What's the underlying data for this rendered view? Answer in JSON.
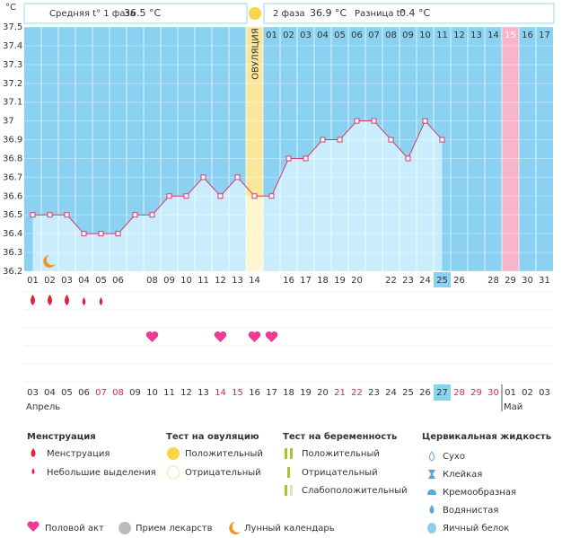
{
  "chart_data": {
    "type": "line",
    "y_unit": "°C",
    "header": {
      "phase1_label": "Средняя t° 1 фаза",
      "phase1_value": "36.5 °C",
      "phase2_label": "2 фаза",
      "phase2_value": "36.9 °C",
      "diff_label": "Разница t°",
      "diff_value": "0.4 °C"
    },
    "categories": [
      "01",
      "02",
      "03",
      "04",
      "05",
      "06",
      null,
      "08",
      "09",
      "10",
      "11",
      "12",
      "13",
      "14",
      null,
      "16",
      "17",
      "18",
      "19",
      "20",
      null,
      "22",
      "23",
      "24",
      "25",
      "26",
      null,
      "28",
      "29",
      "30",
      "31"
    ],
    "cycle_days": [
      null,
      null,
      null,
      null,
      null,
      null,
      null,
      null,
      null,
      null,
      null,
      null,
      null,
      null,
      "01",
      "02",
      "03",
      "04",
      "05",
      "06",
      "07",
      "08",
      "09",
      "10",
      "11",
      "12",
      "13",
      "14",
      "15",
      "16",
      "17"
    ],
    "series": [
      {
        "name": "t°",
        "color": "#d63a6c",
        "values": [
          36.5,
          36.5,
          36.5,
          36.4,
          36.4,
          36.4,
          36.5,
          36.5,
          36.6,
          36.6,
          36.7,
          36.6,
          36.7,
          36.6,
          36.6,
          36.8,
          36.8,
          36.9,
          36.9,
          37.0,
          37.0,
          36.9,
          36.8,
          37.0,
          36.9,
          null,
          null,
          null,
          null,
          null,
          null
        ]
      }
    ],
    "ylim": [
      36.2,
      37.5
    ],
    "yticks": [
      36.2,
      36.3,
      36.4,
      36.5,
      36.6,
      36.7,
      36.8,
      36.9,
      37,
      37.1,
      37.2,
      37.3,
      37.4,
      37.5
    ],
    "ovulation_day": 14,
    "ovulation_label": "ОВУЛЯЦИЯ",
    "cycle_highlight_day": 29,
    "selected_day": 25,
    "menstruation_days": [
      1,
      2,
      3
    ],
    "light_bleeding_days": [
      4,
      5
    ],
    "intercourse_days": [
      8,
      12,
      14,
      15
    ],
    "moon_days": [
      2
    ],
    "dates": [
      {
        "label": "03"
      },
      {
        "label": "04"
      },
      {
        "label": "05"
      },
      {
        "label": "06"
      },
      {
        "label": "07",
        "weekend": true
      },
      {
        "label": "08",
        "weekend": true
      },
      {
        "label": "09"
      },
      {
        "label": "10"
      },
      {
        "label": "11"
      },
      {
        "label": "12"
      },
      {
        "label": "13"
      },
      {
        "label": "14",
        "weekend": true
      },
      {
        "label": "15",
        "weekend": true
      },
      {
        "label": "16"
      },
      {
        "label": "17"
      },
      {
        "label": "18"
      },
      {
        "label": "19"
      },
      {
        "label": "20"
      },
      {
        "label": "21",
        "weekend": true
      },
      {
        "label": "22",
        "weekend": true
      },
      {
        "label": "23"
      },
      {
        "label": "24"
      },
      {
        "label": "25"
      },
      {
        "label": "26"
      },
      {
        "label": "27"
      },
      {
        "label": "28",
        "weekend": true
      },
      {
        "label": "29",
        "weekend": true
      },
      {
        "label": "30",
        "weekend": true
      },
      {
        "label": "01"
      },
      {
        "label": "02"
      },
      {
        "label": "03"
      }
    ],
    "weekend_color": "#e0245e",
    "months": [
      "Апрель",
      "Май"
    ],
    "legend": {
      "menstruation": {
        "title": "Менструация",
        "items": [
          "Менструация",
          "Небольшие выделения"
        ]
      },
      "ovulation_test": {
        "title": "Тест на овуляцию",
        "items": [
          "Положительный",
          "Отрицательный"
        ]
      },
      "pregnancy_test": {
        "title": "Тест на беременность",
        "items": [
          "Положительный",
          "Отрицательный",
          "Слабоположительный"
        ]
      },
      "cervical_fluid": {
        "title": "Цервикальная жидкость",
        "items": [
          "Сухо",
          "Клейкая",
          "Кремообразная",
          "Водянистая",
          "Яичный белок"
        ]
      },
      "other": [
        "Половой акт",
        "Прием лекарств",
        "Лунный календарь"
      ]
    }
  }
}
